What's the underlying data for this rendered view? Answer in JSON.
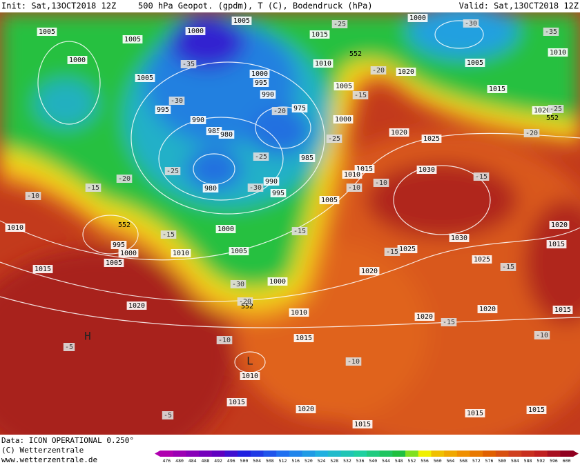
{
  "header": {
    "init": "Init: Sat,13OCT2018 12Z",
    "title": "500 hPa Geopot. (gpdm), T (C), Bodendruck (hPa)",
    "valid": "Valid: Sat,13OCT2018 12Z"
  },
  "footer": {
    "data": "Data: ICON OPERATIONAL 0.250°",
    "copyright": "(C) Wetterzentrale",
    "url": "www.wetterzentrale.de"
  },
  "colorbar": {
    "ticks": [
      476,
      480,
      484,
      488,
      492,
      496,
      500,
      504,
      508,
      512,
      516,
      520,
      524,
      528,
      532,
      536,
      540,
      544,
      548,
      552,
      556,
      560,
      564,
      568,
      572,
      576,
      580,
      584,
      588,
      592,
      596,
      600
    ]
  },
  "map": {
    "pressure_labels": [
      1005,
      1005,
      1000,
      1005,
      1015,
      1000,
      1000,
      1010,
      1005,
      1010,
      1005,
      1000,
      995,
      990,
      1005,
      1015,
      1020,
      995,
      990,
      975,
      985,
      980,
      1000,
      1020,
      1020,
      1025,
      985,
      1015,
      1010,
      1030,
      980,
      990,
      995,
      1005,
      1010,
      1000,
      1020,
      995,
      1000,
      1030,
      1015,
      1005,
      1010,
      1005,
      1025,
      1025,
      1015,
      1020,
      1000,
      1020,
      1010,
      1020,
      1020,
      1015,
      1015,
      1010,
      1015,
      1020,
      1015,
      1015,
      1015
    ],
    "temperature_labels": [
      -25,
      -35,
      -20,
      -30,
      -35,
      -30,
      -20,
      -15,
      -25,
      -25,
      -20,
      -25,
      -30,
      -15,
      -10,
      -10,
      -10,
      -15,
      -15,
      -15,
      -15,
      -15,
      -30,
      -20,
      -10,
      -15,
      -5,
      -10,
      -10,
      -5,
      -20,
      -25
    ],
    "geopotential_labels": [
      552,
      552,
      552,
      552
    ],
    "highs": [
      "H"
    ],
    "lows": [
      "L"
    ]
  }
}
